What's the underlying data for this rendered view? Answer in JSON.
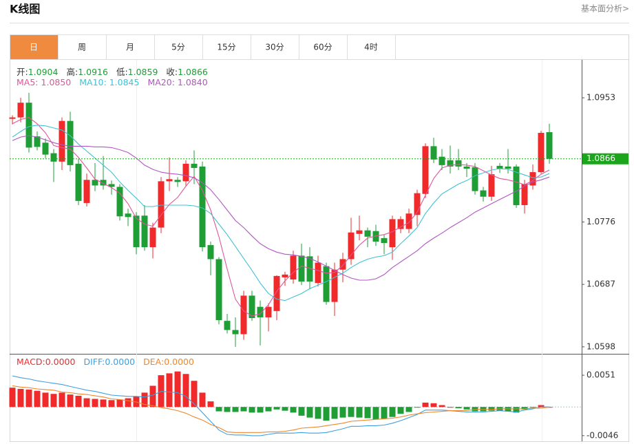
{
  "header": {
    "title": "K线图",
    "link": "基本面分析>"
  },
  "tabs": {
    "items": [
      "日",
      "周",
      "月",
      "5分",
      "15分",
      "30分",
      "60分",
      "4时"
    ],
    "active": 0
  },
  "chart_data": [
    {
      "type": "candlestick",
      "info_labels": [
        "开:",
        "高:",
        "低:",
        "收:"
      ],
      "up_color": "#f02a2a",
      "down_color": "#1e9e35",
      "info_value_color": "#1e9e35",
      "open": [
        1.0923,
        1.0925,
        1.0946,
        1.0898,
        1.0889,
        1.0874,
        1.0862,
        1.092,
        1.0859,
        1.0803,
        1.0836,
        1.0836,
        1.083,
        1.0826,
        1.0788,
        1.0785,
        1.0785,
        1.074,
        1.0768,
        1.0834,
        1.0836,
        1.0834,
        1.0859,
        1.0855,
        1.0743,
        1.0723,
        1.0635,
        1.0622,
        1.0616,
        1.0671,
        1.0655,
        1.064,
        1.0649,
        1.0697,
        1.0694,
        1.0728,
        1.0727,
        1.0689,
        1.0713,
        1.0662,
        1.0708,
        1.0723,
        1.0759,
        1.0764,
        1.0763,
        1.0753,
        1.074,
        1.0766,
        1.0766,
        1.0786,
        1.0816,
        1.0884,
        1.0869,
        1.0864,
        1.0864,
        1.0855,
        1.0854,
        1.0821,
        1.0812,
        1.0856,
        1.0855,
        1.0855,
        1.08,
        1.0828,
        1.0847,
        1.0904
      ],
      "high": [
        1.0928,
        1.0953,
        1.096,
        1.0905,
        1.0895,
        1.088,
        1.0925,
        1.0933,
        1.0866,
        1.0845,
        1.086,
        1.087,
        1.0835,
        1.083,
        1.0795,
        1.079,
        1.08,
        1.0775,
        1.084,
        1.0868,
        1.084,
        1.0864,
        1.0878,
        1.0862,
        1.0748,
        1.0726,
        1.0645,
        1.064,
        1.0678,
        1.0678,
        1.0664,
        1.066,
        1.07,
        1.0705,
        1.0735,
        1.0745,
        1.074,
        1.0728,
        1.0718,
        1.0718,
        1.0732,
        1.0782,
        1.0785,
        1.0768,
        1.0772,
        1.0758,
        1.0785,
        1.0784,
        1.0795,
        1.0822,
        1.0888,
        1.0896,
        1.088,
        1.0885,
        1.088,
        1.086,
        1.086,
        1.0826,
        1.0856,
        1.086,
        1.088,
        1.0858,
        1.0836,
        1.0858,
        1.0906,
        1.0916
      ],
      "low": [
        1.0915,
        1.0918,
        1.0875,
        1.0878,
        1.0867,
        1.0833,
        1.085,
        1.0848,
        1.08,
        1.0798,
        1.082,
        1.0822,
        1.0815,
        1.0778,
        1.077,
        1.073,
        1.0735,
        1.0724,
        1.076,
        1.082,
        1.0826,
        1.0828,
        1.083,
        1.0734,
        1.07,
        1.063,
        1.0617,
        1.0598,
        1.0608,
        1.0635,
        1.06,
        1.062,
        1.0636,
        1.0685,
        1.0688,
        1.0686,
        1.068,
        1.0684,
        1.0658,
        1.0642,
        1.069,
        1.0715,
        1.075,
        1.074,
        1.0742,
        1.073,
        1.0722,
        1.076,
        1.076,
        1.077,
        1.081,
        1.086,
        1.085,
        1.0845,
        1.085,
        1.084,
        1.0815,
        1.0805,
        1.0806,
        1.0846,
        1.0845,
        1.0796,
        1.0788,
        1.0822,
        1.0845,
        1.0859
      ],
      "close": [
        1.0925,
        1.0946,
        1.0882,
        1.0883,
        1.0872,
        1.0862,
        1.092,
        1.0857,
        1.0806,
        1.0836,
        1.0828,
        1.0828,
        1.0826,
        1.0784,
        1.0783,
        1.074,
        1.074,
        1.0768,
        1.0834,
        1.0837,
        1.0833,
        1.0859,
        1.0853,
        1.074,
        1.0723,
        1.0636,
        1.0622,
        1.0616,
        1.0671,
        1.0639,
        1.064,
        1.0655,
        1.0699,
        1.0701,
        1.0728,
        1.0691,
        1.0691,
        1.0718,
        1.0662,
        1.0708,
        1.0723,
        1.0761,
        1.0764,
        1.0755,
        1.0748,
        1.0746,
        1.078,
        1.078,
        1.0788,
        1.0817,
        1.0884,
        1.0865,
        1.0857,
        1.0855,
        1.0855,
        1.0852,
        1.082,
        1.0812,
        1.0844,
        1.0852,
        1.0852,
        1.08,
        1.083,
        1.0847,
        1.0903,
        1.0866
      ],
      "series": [
        {
          "name": "MA5:",
          "value_label": "1.0850",
          "color": "#e0559a",
          "values": [
            1.0916,
            1.0922,
            1.0925,
            1.0916,
            1.0903,
            1.0885,
            1.0882,
            1.088,
            1.0868,
            1.0853,
            1.0837,
            1.0831,
            1.0825,
            1.0817,
            1.0802,
            1.0781,
            1.0773,
            1.077,
            1.0786,
            1.0801,
            1.0811,
            1.0827,
            1.0841,
            1.0821,
            1.0793,
            1.0755,
            1.0709,
            1.0666,
            1.0649,
            1.0642,
            1.0645,
            1.0658,
            1.0677,
            1.0692,
            1.0704,
            1.0713,
            1.071,
            1.0707,
            1.0703,
            1.0704,
            1.0714,
            1.0729,
            1.0743,
            1.0753,
            1.0756,
            1.0758,
            1.0762,
            1.0769,
            1.0775,
            1.079,
            1.0814,
            1.0838,
            1.0853,
            1.0857,
            1.0858,
            1.0857,
            1.0855,
            1.0849,
            1.0843,
            1.0838,
            1.0836,
            1.0833,
            1.0829,
            1.0835,
            1.0844,
            1.085
          ]
        },
        {
          "name": "MA10:",
          "value_label": "1.0845",
          "color": "#3fc2d3",
          "values": [
            1.0897,
            1.0905,
            1.0912,
            1.0914,
            1.0913,
            1.091,
            1.0907,
            1.0899,
            1.0887,
            1.0877,
            1.0867,
            1.0857,
            1.0847,
            1.0833,
            1.0821,
            1.081,
            1.0798,
            1.0798,
            1.08,
            1.08,
            1.08,
            1.08,
            1.0799,
            1.0796,
            1.0788,
            1.0773,
            1.0758,
            1.0741,
            1.0724,
            1.0707,
            1.0689,
            1.0674,
            1.0666,
            1.0664,
            1.0669,
            1.0674,
            1.0681,
            1.0686,
            1.0691,
            1.0697,
            1.0703,
            1.0711,
            1.0718,
            1.0723,
            1.0726,
            1.0728,
            1.0733,
            1.0745,
            1.0756,
            1.0768,
            1.0788,
            1.0803,
            1.0816,
            1.0823,
            1.083,
            1.0835,
            1.0842,
            1.0846,
            1.085,
            1.0852,
            1.0851,
            1.0847,
            1.0843,
            1.0839,
            1.084,
            1.0845
          ]
        },
        {
          "name": "MA20:",
          "value_label": "1.0840",
          "color": "#b056c2",
          "values": [
            1.0892,
            1.0897,
            1.0899,
            1.0897,
            1.0893,
            1.0889,
            1.0886,
            1.0884,
            1.0884,
            1.0884,
            1.0883,
            1.0883,
            1.0882,
            1.0879,
            1.0875,
            1.0867,
            1.0857,
            1.0851,
            1.0847,
            1.0845,
            1.0844,
            1.0842,
            1.0839,
            1.0832,
            1.0822,
            1.0808,
            1.0793,
            1.0778,
            1.0768,
            1.0756,
            1.0745,
            1.0738,
            1.0733,
            1.073,
            1.0729,
            1.0727,
            1.0724,
            1.0719,
            1.0713,
            1.0707,
            1.0701,
            1.0696,
            1.0693,
            1.0693,
            1.0695,
            1.0701,
            1.0711,
            1.0719,
            1.0727,
            1.0735,
            1.0745,
            1.0753,
            1.076,
            1.0768,
            1.0775,
            1.0782,
            1.079,
            1.0796,
            1.0802,
            1.0808,
            1.0814,
            1.082,
            1.0827,
            1.0833,
            1.0836,
            1.084
          ]
        }
      ],
      "price_line_color": "#1aa51a",
      "ylim": [
        1.059,
        1.1008
      ],
      "yticks": [
        1.0953,
        1.0776,
        1.0687,
        1.0598
      ],
      "grid": false
    },
    {
      "type": "macd",
      "up_color": "#f02a2a",
      "down_color": "#1e9e35",
      "series": [
        {
          "name": "MACD:",
          "value_label": "0.0000",
          "color": "#f02a2a",
          "kind": "bar",
          "values": [
            0.0031,
            0.0029,
            0.0028,
            0.0026,
            0.0023,
            0.0021,
            0.0023,
            0.002,
            0.0018,
            0.0014,
            0.0013,
            0.0012,
            0.0011,
            0.0012,
            0.0014,
            0.0017,
            0.0023,
            0.0034,
            0.0051,
            0.0054,
            0.0057,
            0.0053,
            0.0042,
            0.0023,
            0.0009,
            -0.0007,
            -0.0008,
            -0.0008,
            -0.0007,
            -0.0009,
            -0.0009,
            -0.0007,
            -0.0004,
            -0.0006,
            -0.0009,
            -0.0014,
            -0.0017,
            -0.0019,
            -0.0022,
            -0.0019,
            -0.0017,
            -0.0016,
            -0.0017,
            -0.0018,
            -0.002,
            -0.0019,
            -0.0016,
            -0.0011,
            -0.0008,
            -0.0001,
            0.0007,
            0.0006,
            0.0003,
            0,
            -0.0002,
            -0.0004,
            -0.0007,
            -0.0007,
            -0.0006,
            -0.0006,
            -0.0007,
            -0.0009,
            -0.0004,
            -0.0001,
            0.0003,
            0
          ]
        },
        {
          "name": "DIFF:",
          "value_label": "0.0000",
          "color": "#3d9fe0",
          "kind": "line",
          "values": [
            0.005,
            0.0047,
            0.0045,
            0.0042,
            0.004,
            0.0038,
            0.0036,
            0.0033,
            0.003,
            0.0027,
            0.0025,
            0.0022,
            0.0019,
            0.0018,
            0.0017,
            0.0017,
            0.0016,
            0.0019,
            0.0025,
            0.0024,
            0.0023,
            0.0017,
            0.0005,
            -0.0009,
            -0.0023,
            -0.0037,
            -0.0044,
            -0.0045,
            -0.0045,
            -0.0046,
            -0.0046,
            -0.0044,
            -0.0042,
            -0.0042,
            -0.0042,
            -0.0041,
            -0.0042,
            -0.0042,
            -0.0041,
            -0.0038,
            -0.0035,
            -0.0031,
            -0.0031,
            -0.003,
            -0.003,
            -0.0029,
            -0.0026,
            -0.0022,
            -0.0017,
            -0.0012,
            -0.0005,
            -0.0005,
            -0.0005,
            -0.0006,
            -0.0007,
            -0.0008,
            -0.0008,
            -0.0008,
            -0.0007,
            -0.0006,
            -0.0007,
            -0.0008,
            -0.0005,
            -0.0003,
            0,
            0
          ]
        },
        {
          "name": "DEA:",
          "value_label": "0.0000",
          "color": "#f0862a",
          "kind": "line",
          "values": [
            0.0034,
            0.0032,
            0.0031,
            0.0029,
            0.0028,
            0.0027,
            0.0024,
            0.0023,
            0.0021,
            0.002,
            0.0018,
            0.0016,
            0.0013,
            0.0012,
            0.001,
            0.0008,
            0.0004,
            0.0002,
            -0.0001,
            -0.0003,
            -0.0006,
            -0.001,
            -0.0016,
            -0.0021,
            -0.0028,
            -0.0033,
            -0.004,
            -0.0041,
            -0.0041,
            -0.0041,
            -0.0041,
            -0.004,
            -0.004,
            -0.0039,
            -0.0037,
            -0.0034,
            -0.0033,
            -0.0032,
            -0.003,
            -0.0028,
            -0.0026,
            -0.0023,
            -0.0022,
            -0.0021,
            -0.002,
            -0.0019,
            -0.0018,
            -0.0016,
            -0.0013,
            -0.0011,
            -0.0009,
            -0.0008,
            -0.0007,
            -0.0006,
            -0.0006,
            -0.0006,
            -0.0004,
            -0.0004,
            -0.0004,
            -0.0003,
            -0.0003,
            -0.0003,
            -0.0003,
            -0.0002,
            -0.0002,
            0
          ]
        }
      ],
      "ylim": [
        -0.0055,
        0.0082
      ],
      "yticks": [
        0.0051,
        -0.0046
      ]
    }
  ]
}
